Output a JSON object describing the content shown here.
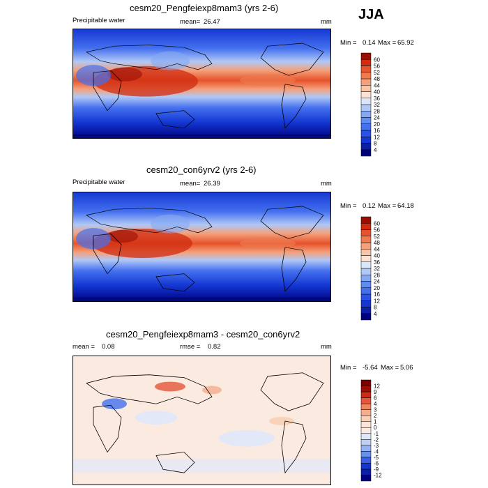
{
  "season": "JJA",
  "chart_data": [
    {
      "type": "heatmap",
      "id": "top",
      "title": "cesm20_Pengfeiexp8mam3 (yrs 2-6)",
      "variable": "Precipitable water",
      "mean_label": "mean=",
      "mean": "26.47",
      "units": "mm",
      "min_label": "Min =",
      "min": "0.14",
      "max_label": "Max =",
      "max": "65.92",
      "colorbar_levels": [
        "4",
        "8",
        "12",
        "16",
        "20",
        "24",
        "28",
        "32",
        "36",
        "40",
        "44",
        "48",
        "52",
        "56",
        "60"
      ],
      "colorbar_colors": [
        "#00007f",
        "#0a1ea8",
        "#1437d2",
        "#2a52e8",
        "#4470ef",
        "#5f8cf2",
        "#86a8f4",
        "#b0c8f6",
        "#dae6fa",
        "#fbe2d5",
        "#f8c4a8",
        "#f4a07a",
        "#ee7a4e",
        "#e6532c",
        "#d02c10",
        "#9a0f05"
      ]
    },
    {
      "type": "heatmap",
      "id": "middle",
      "title": "cesm20_con6yrv2 (yrs 2-6)",
      "variable": "Precipitable water",
      "mean_label": "mean=",
      "mean": "26.39",
      "units": "mm",
      "min_label": "Min =",
      "min": "0.12",
      "max_label": "Max =",
      "max": "64.18",
      "colorbar_levels": [
        "4",
        "8",
        "12",
        "16",
        "20",
        "24",
        "28",
        "32",
        "36",
        "40",
        "44",
        "48",
        "52",
        "56",
        "60"
      ],
      "colorbar_colors": [
        "#00007f",
        "#0a1ea8",
        "#1437d2",
        "#2a52e8",
        "#4470ef",
        "#5f8cf2",
        "#86a8f4",
        "#b0c8f6",
        "#dae6fa",
        "#fbe2d5",
        "#f8c4a8",
        "#f4a07a",
        "#ee7a4e",
        "#e6532c",
        "#d02c10",
        "#9a0f05"
      ]
    },
    {
      "type": "heatmap",
      "id": "diff",
      "title": "cesm20_Pengfeiexp8mam3 - cesm20_con6yrv2",
      "mean_label": "mean =",
      "mean": "0.08",
      "rmse_label": "rmse =",
      "rmse": "0.82",
      "units": "mm",
      "min_label": "Min =",
      "min": "-5.64",
      "max_label": "Max =",
      "max": "5.06",
      "colorbar_levels": [
        "-12",
        "-9",
        "-6",
        "-5",
        "-4",
        "-3",
        "-2",
        "-1",
        "0",
        "1",
        "2",
        "3",
        "4",
        "6",
        "9",
        "12"
      ],
      "colorbar_colors": [
        "#00007f",
        "#0a1ea8",
        "#1437d2",
        "#3a5ee6",
        "#6a90ee",
        "#94b2f2",
        "#bcd0f6",
        "#dfe8fa",
        "#fbeadf",
        "#fbe6d6",
        "#f8cfb4",
        "#f4ae8c",
        "#ee8660",
        "#e4573a",
        "#cf2a14",
        "#9a0f05",
        "#7a0000"
      ]
    }
  ]
}
